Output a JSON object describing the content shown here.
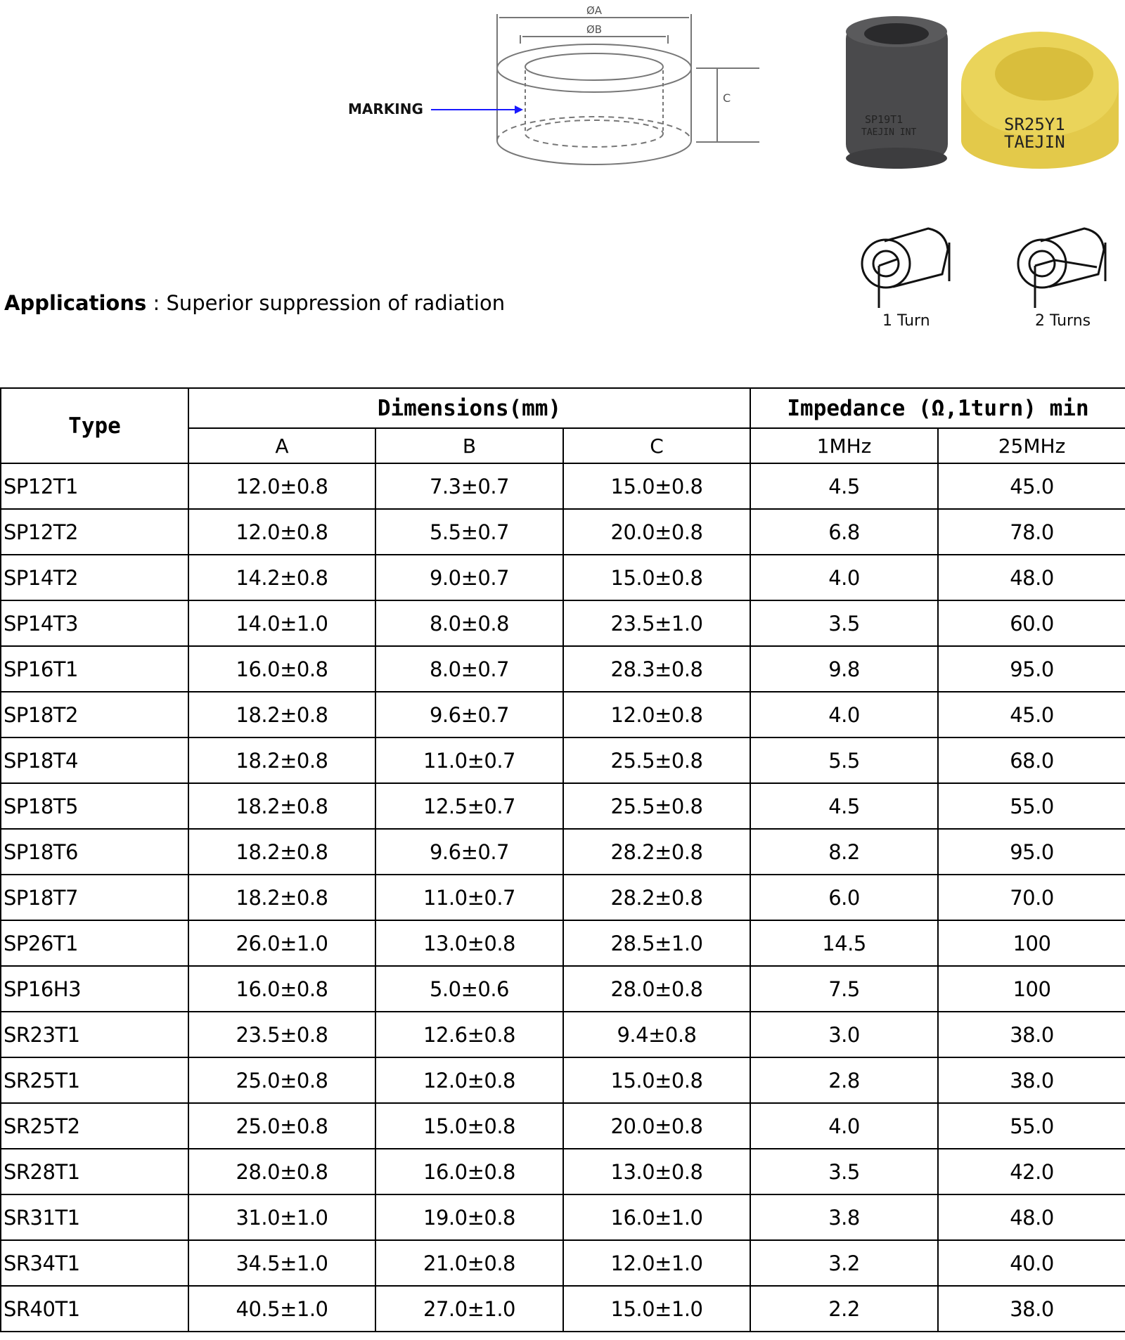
{
  "diagram": {
    "label_a": "ØA",
    "label_b": "ØB",
    "label_c": "C",
    "marking_label": "MARKING",
    "arrow_color": "#1a1aff"
  },
  "photos": {
    "core1_marking": [
      "SP19T1",
      "TAEJIN INT"
    ],
    "core2_marking": [
      "SR25Y1",
      "TAEJIN"
    ],
    "core1_color": "#4a4a4c",
    "core2_color": "#e6cf4e"
  },
  "turns": {
    "one": "1 Turn",
    "two": "2 Turns"
  },
  "applications": {
    "label": "Applications",
    "separator": " : ",
    "text": "Superior suppression of radiation"
  },
  "table": {
    "type_header": "Type",
    "dimensions_header": "Dimensions(mm)",
    "impedance_header": "Impedance (Ω,1turn) min",
    "sub_headers": [
      "A",
      "B",
      "C",
      "1MHz",
      "25MHz"
    ],
    "rows": [
      [
        "SP12T1",
        "12.0±0.8",
        "7.3±0.7",
        "15.0±0.8",
        "4.5",
        "45.0"
      ],
      [
        "SP12T2",
        "12.0±0.8",
        "5.5±0.7",
        "20.0±0.8",
        "6.8",
        "78.0"
      ],
      [
        "SP14T2",
        "14.2±0.8",
        "9.0±0.7",
        "15.0±0.8",
        "4.0",
        "48.0"
      ],
      [
        "SP14T3",
        "14.0±1.0",
        "8.0±0.8",
        "23.5±1.0",
        "3.5",
        "60.0"
      ],
      [
        "SP16T1",
        "16.0±0.8",
        "8.0±0.7",
        "28.3±0.8",
        "9.8",
        "95.0"
      ],
      [
        "SP18T2",
        "18.2±0.8",
        "9.6±0.7",
        "12.0±0.8",
        "4.0",
        "45.0"
      ],
      [
        "SP18T4",
        "18.2±0.8",
        "11.0±0.7",
        "25.5±0.8",
        "5.5",
        "68.0"
      ],
      [
        "SP18T5",
        "18.2±0.8",
        "12.5±0.7",
        "25.5±0.8",
        "4.5",
        "55.0"
      ],
      [
        "SP18T6",
        "18.2±0.8",
        "9.6±0.7",
        "28.2±0.8",
        "8.2",
        "95.0"
      ],
      [
        "SP18T7",
        "18.2±0.8",
        "11.0±0.7",
        "28.2±0.8",
        "6.0",
        "70.0"
      ],
      [
        "SP26T1",
        "26.0±1.0",
        "13.0±0.8",
        "28.5±1.0",
        "14.5",
        "100"
      ],
      [
        "SP16H3",
        "16.0±0.8",
        "5.0±0.6",
        "28.0±0.8",
        "7.5",
        "100"
      ],
      [
        "SR23T1",
        "23.5±0.8",
        "12.6±0.8",
        "9.4±0.8",
        "3.0",
        "38.0"
      ],
      [
        "SR25T1",
        "25.0±0.8",
        "12.0±0.8",
        "15.0±0.8",
        "2.8",
        "38.0"
      ],
      [
        "SR25T2",
        "25.0±0.8",
        "15.0±0.8",
        "20.0±0.8",
        "4.0",
        "55.0"
      ],
      [
        "SR28T1",
        "28.0±0.8",
        "16.0±0.8",
        "13.0±0.8",
        "3.5",
        "42.0"
      ],
      [
        "SR31T1",
        "31.0±1.0",
        "19.0±0.8",
        "16.0±1.0",
        "3.8",
        "48.0"
      ],
      [
        "SR34T1",
        "34.5±1.0",
        "21.0±0.8",
        "12.0±1.0",
        "3.2",
        "40.0"
      ],
      [
        "SR40T1",
        "40.5±1.0",
        "27.0±1.0",
        "15.0±1.0",
        "2.2",
        "38.0"
      ]
    ]
  }
}
